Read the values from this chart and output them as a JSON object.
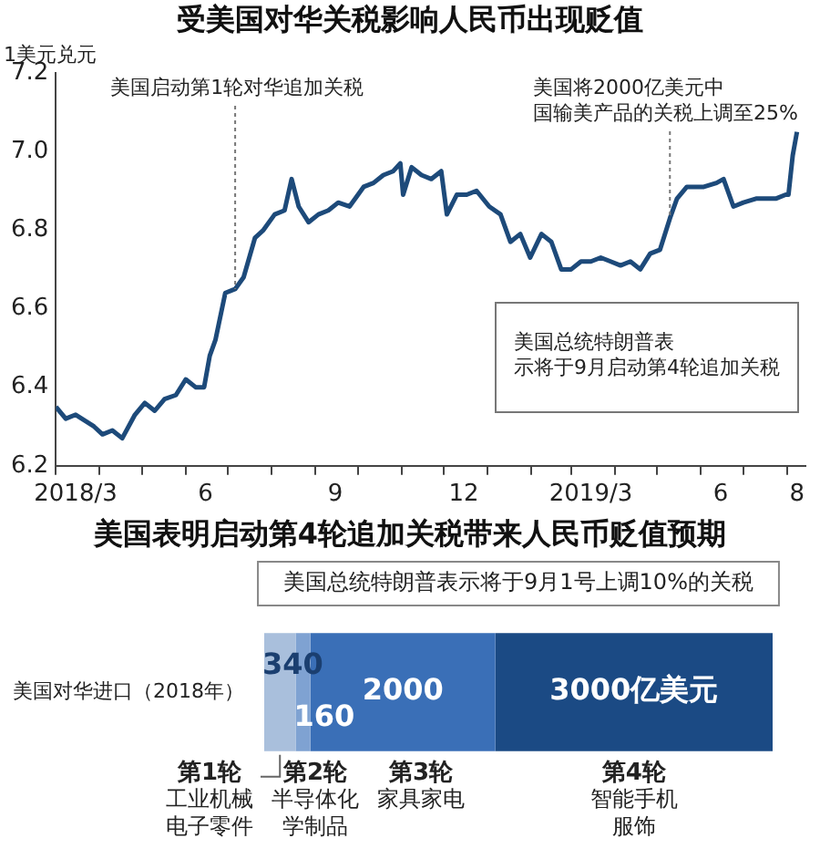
{
  "chart_data": [
    {
      "type": "line",
      "title": "受美国对华关税影响人民币出现贬值",
      "ylabel": "1美元兑元",
      "x": [
        "2018-03-01",
        "2018-03-08",
        "2018-03-15",
        "2018-03-28",
        "2018-04-03",
        "2018-04-10",
        "2018-04-17",
        "2018-04-26",
        "2018-05-03",
        "2018-05-10",
        "2018-05-17",
        "2018-05-25",
        "2018-06-01",
        "2018-06-08",
        "2018-06-14",
        "2018-06-18",
        "2018-06-22",
        "2018-06-29",
        "2018-07-06",
        "2018-07-12",
        "2018-07-20",
        "2018-07-26",
        "2018-08-03",
        "2018-08-10",
        "2018-08-15",
        "2018-08-20",
        "2018-08-27",
        "2018-09-03",
        "2018-09-10",
        "2018-09-17",
        "2018-09-25",
        "2018-10-05",
        "2018-10-12",
        "2018-10-19",
        "2018-10-26",
        "2018-10-31",
        "2018-11-02",
        "2018-11-08",
        "2018-11-15",
        "2018-11-22",
        "2018-11-29",
        "2018-12-03",
        "2018-12-10",
        "2018-12-17",
        "2018-12-24",
        "2019-01-02",
        "2019-01-10",
        "2019-01-17",
        "2019-01-24",
        "2019-01-31",
        "2019-02-08",
        "2019-02-15",
        "2019-02-22",
        "2019-03-01",
        "2019-03-08",
        "2019-03-15",
        "2019-03-22",
        "2019-03-29",
        "2019-04-05",
        "2019-04-12",
        "2019-04-19",
        "2019-04-26",
        "2019-05-03",
        "2019-05-10",
        "2019-05-15",
        "2019-05-22",
        "2019-06-03",
        "2019-06-12",
        "2019-06-17",
        "2019-06-24",
        "2019-07-01",
        "2019-07-10",
        "2019-07-17",
        "2019-07-24",
        "2019-07-31",
        "2019-08-02",
        "2019-08-05",
        "2019-08-08"
      ],
      "series": [
        {
          "color": "#1d4a7a",
          "values": [
            6.35,
            6.32,
            6.33,
            6.3,
            6.28,
            6.29,
            6.27,
            6.33,
            6.36,
            6.34,
            6.37,
            6.38,
            6.42,
            6.4,
            6.4,
            6.48,
            6.52,
            6.64,
            6.65,
            6.68,
            6.78,
            6.8,
            6.84,
            6.85,
            6.93,
            6.86,
            6.82,
            6.84,
            6.85,
            6.87,
            6.86,
            6.91,
            6.92,
            6.94,
            6.95,
            6.97,
            6.89,
            6.96,
            6.94,
            6.93,
            6.95,
            6.84,
            6.89,
            6.89,
            6.9,
            6.86,
            6.84,
            6.77,
            6.79,
            6.73,
            6.79,
            6.77,
            6.7,
            6.7,
            6.72,
            6.72,
            6.73,
            6.72,
            6.71,
            6.72,
            6.7,
            6.74,
            6.75,
            6.83,
            6.88,
            6.91,
            6.91,
            6.92,
            6.93,
            6.86,
            6.87,
            6.88,
            6.88,
            6.88,
            6.89,
            6.89,
            6.99,
            7.05
          ]
        }
      ],
      "xlim": [
        "2018-03-01",
        "2019-08-14"
      ],
      "xticks": [
        {
          "value": "2018-03-01",
          "label": null
        },
        {
          "value": "2018-04-01",
          "label": null
        },
        {
          "value": "2018-05-01",
          "label": null
        },
        {
          "value": "2018-06-01",
          "label": null
        },
        {
          "value": "2018-07-01",
          "label": null
        },
        {
          "value": "2018-08-01",
          "label": null
        },
        {
          "value": "2018-09-01",
          "label": null
        },
        {
          "value": "2018-10-01",
          "label": null
        },
        {
          "value": "2018-11-01",
          "label": null
        },
        {
          "value": "2018-12-01",
          "label": null
        },
        {
          "value": "2019-01-01",
          "label": null
        },
        {
          "value": "2019-02-01",
          "label": null
        },
        {
          "value": "2019-03-01",
          "label": null
        },
        {
          "value": "2019-04-01",
          "label": null
        },
        {
          "value": "2019-05-01",
          "label": null
        },
        {
          "value": "2019-06-01",
          "label": null
        },
        {
          "value": "2019-07-01",
          "label": null
        },
        {
          "value": "2019-08-01",
          "label": null
        },
        {
          "value": "2018-03-15",
          "label": "2018/3"
        },
        {
          "value": "2018-06-15",
          "label": "6"
        },
        {
          "value": "2018-09-15",
          "label": "9"
        },
        {
          "value": "2018-12-15",
          "label": "12"
        },
        {
          "value": "2019-03-15",
          "label": "2019/3"
        },
        {
          "value": "2019-06-15",
          "label": "6"
        },
        {
          "value": "2019-08-08",
          "label": "8"
        }
      ],
      "ylim": [
        6.2,
        7.2
      ],
      "yticks": [
        6.2,
        6.4,
        6.6,
        6.8,
        {
          "value": 7,
          "label": "7.0"
        },
        7.2
      ],
      "annotations": [
        {
          "text": "美国启动第1轮对华追加关税",
          "x": "2018-07-06",
          "y": 6.65
        },
        {
          "text": "美国将2000亿美元中国输美产品的关税上调至25%",
          "x": "2019-05-10",
          "y": 6.83
        },
        "美国总统特朗普表示将于9月启动第4轮追加关税"
      ]
    },
    {
      "type": "bar",
      "orientation": "horizontal",
      "stacked": true,
      "title": "美国表明启动第4轮追加关税带来人民币贬值预期",
      "categories": [
        "美国对华进口（2018年）"
      ],
      "series": [
        {
          "name": "第1轮",
          "color": "#a9bfdc",
          "values": [
            340
          ],
          "value_labels": [
            "340"
          ]
        },
        {
          "name": "第2轮",
          "color": "#7fa2d2",
          "values": [
            160
          ],
          "value_labels": [
            "160"
          ]
        },
        {
          "name": "第3轮",
          "color": "#3a6fb7",
          "values": [
            2000
          ],
          "value_labels": [
            "2000"
          ]
        },
        {
          "name": "第4轮",
          "color": "#1b4a84",
          "values": [
            3000
          ],
          "value_labels": [
            "3000亿美元"
          ]
        }
      ],
      "xlim": [
        0,
        5500
      ],
      "tick_labels": "y",
      "subtitle": "美国总统特朗普表示将于9月1号上调10%的关税",
      "annotations": [
        "工业机械电子零件",
        "半导体化学制品",
        "家具家电",
        "智能手机服饰"
      ]
    }
  ]
}
